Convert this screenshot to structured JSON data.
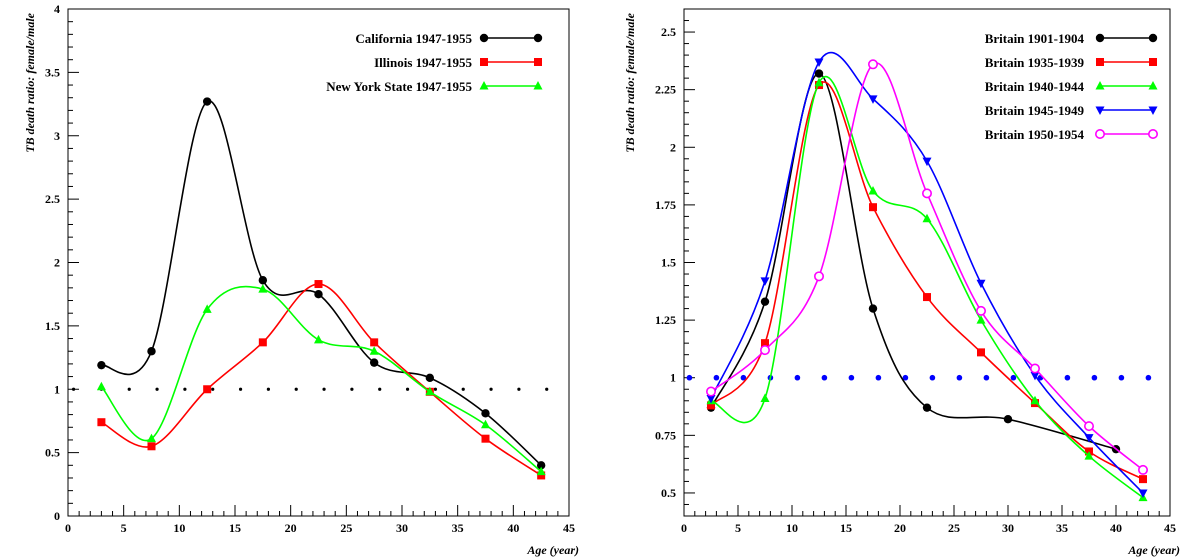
{
  "chart_data": [
    {
      "type": "line",
      "xlabel": "Age (year)",
      "ylabel": "TB death ratio: female/male",
      "xlim": [
        0,
        45
      ],
      "ylim": [
        0,
        4
      ],
      "xticks": [
        0,
        5,
        10,
        15,
        20,
        25,
        30,
        35,
        40,
        45
      ],
      "yticks": [
        0,
        0.5,
        1,
        1.5,
        2,
        2.5,
        3,
        3.5,
        4
      ],
      "ytick_labels": [
        "0",
        "0.5",
        "1",
        "1.5",
        "2",
        "2.5",
        "3",
        "3.5",
        "4"
      ],
      "legend_position": "top-right",
      "grid": false,
      "reference": {
        "y": 1,
        "x_from": 0.5,
        "x_to": 45,
        "step": 2.5,
        "color": "#000000"
      },
      "series": [
        {
          "name": "California 1947-1955",
          "color": "#000000",
          "marker": "circle",
          "x": [
            3,
            7.5,
            12.5,
            17.5,
            22.5,
            27.5,
            32.5,
            37.5,
            42.5
          ],
          "y": [
            1.19,
            1.3,
            3.27,
            1.86,
            1.75,
            1.21,
            1.09,
            0.81,
            0.4
          ]
        },
        {
          "name": "Illinois 1947-1955",
          "color": "#ff0000",
          "marker": "square",
          "x": [
            3,
            7.5,
            12.5,
            17.5,
            22.5,
            27.5,
            32.5,
            37.5,
            42.5
          ],
          "y": [
            0.74,
            0.55,
            1.0,
            1.37,
            1.83,
            1.37,
            0.98,
            0.61,
            0.32
          ]
        },
        {
          "name": "New York State 1947-1955",
          "color": "#00ff00",
          "marker": "triangle-up",
          "x": [
            3,
            7.5,
            12.5,
            17.5,
            22.5,
            27.5,
            32.5,
            37.5,
            42.5
          ],
          "y": [
            1.02,
            0.61,
            1.63,
            1.79,
            1.39,
            1.3,
            0.98,
            0.72,
            0.35
          ]
        }
      ]
    },
    {
      "type": "line",
      "xlabel": "Age (year)",
      "ylabel": "TB death ratio: female/male",
      "xlim": [
        0,
        45
      ],
      "ylim": [
        0.4,
        2.6
      ],
      "xticks": [
        0,
        5,
        10,
        15,
        20,
        25,
        30,
        35,
        40,
        45
      ],
      "yticks": [
        0.5,
        0.75,
        1,
        1.25,
        1.5,
        1.75,
        2,
        2.25,
        2.5
      ],
      "ytick_labels": [
        "0.5",
        "0.75",
        "1",
        "1.25",
        "1.5",
        "1.75",
        "2",
        "2.25",
        "2.5"
      ],
      "legend_position": "top-right",
      "grid": false,
      "reference": {
        "y": 1,
        "x_from": 0.5,
        "x_to": 45,
        "step": 2.5,
        "color": "#0000ff"
      },
      "series": [
        {
          "name": "Britain 1901-1904",
          "color": "#000000",
          "marker": "circle",
          "x": [
            2.5,
            7.5,
            12.5,
            17.5,
            22.5,
            30,
            40
          ],
          "y": [
            0.87,
            1.33,
            2.32,
            1.3,
            0.87,
            0.82,
            0.69
          ]
        },
        {
          "name": "Britain 1935-1939",
          "color": "#ff0000",
          "marker": "square",
          "x": [
            2.5,
            7.5,
            12.5,
            17.5,
            22.5,
            27.5,
            32.5,
            37.5,
            42.5
          ],
          "y": [
            0.88,
            1.15,
            2.27,
            1.74,
            1.35,
            1.11,
            0.89,
            0.68,
            0.56
          ]
        },
        {
          "name": "Britain 1940-1944",
          "color": "#00ff00",
          "marker": "triangle-up",
          "x": [
            2.5,
            7.5,
            12.5,
            17.5,
            22.5,
            27.5,
            32.5,
            37.5,
            42.5
          ],
          "y": [
            0.9,
            0.91,
            2.28,
            1.81,
            1.69,
            1.25,
            0.9,
            0.66,
            0.48
          ]
        },
        {
          "name": "Britain 1945-1949",
          "color": "#0000ff",
          "marker": "triangle-down",
          "x": [
            2.5,
            7.5,
            12.5,
            17.5,
            22.5,
            27.5,
            32.5,
            37.5,
            42.5
          ],
          "y": [
            0.91,
            1.42,
            2.37,
            2.21,
            1.94,
            1.41,
            1.01,
            0.74,
            0.5
          ]
        },
        {
          "name": "Britain 1950-1954",
          "color": "#ff00ff",
          "marker": "open-circle",
          "x": [
            2.5,
            7.5,
            12.5,
            17.5,
            22.5,
            27.5,
            32.5,
            37.5,
            42.5
          ],
          "y": [
            0.94,
            1.12,
            1.44,
            2.36,
            1.8,
            1.29,
            1.04,
            0.79,
            0.6
          ]
        }
      ]
    }
  ]
}
